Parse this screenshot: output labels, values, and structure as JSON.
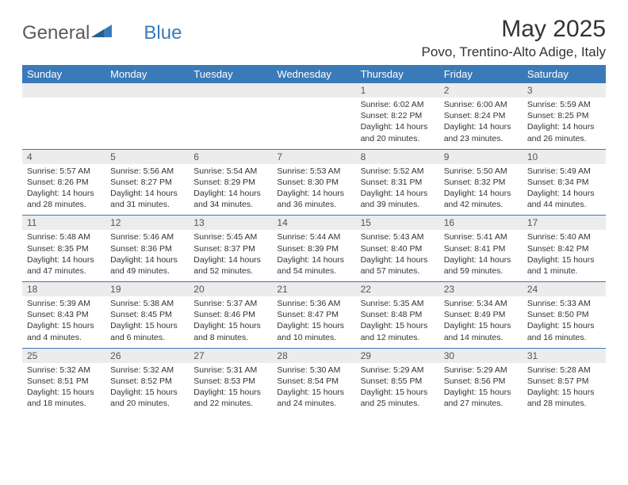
{
  "brand": {
    "part1": "General",
    "part2": "Blue"
  },
  "title": "May 2025",
  "location": "Povo, Trentino-Alto Adige, Italy",
  "colors": {
    "header_bg": "#3a7ab8",
    "header_fg": "#ffffff",
    "daynum_bg": "#ececec",
    "row_border": "#3a7ab8"
  },
  "weekdays": [
    "Sunday",
    "Monday",
    "Tuesday",
    "Wednesday",
    "Thursday",
    "Friday",
    "Saturday"
  ],
  "weeks": [
    [
      {
        "n": "",
        "lines": []
      },
      {
        "n": "",
        "lines": []
      },
      {
        "n": "",
        "lines": []
      },
      {
        "n": "",
        "lines": []
      },
      {
        "n": "1",
        "lines": [
          "Sunrise: 6:02 AM",
          "Sunset: 8:22 PM",
          "Daylight: 14 hours and 20 minutes."
        ]
      },
      {
        "n": "2",
        "lines": [
          "Sunrise: 6:00 AM",
          "Sunset: 8:24 PM",
          "Daylight: 14 hours and 23 minutes."
        ]
      },
      {
        "n": "3",
        "lines": [
          "Sunrise: 5:59 AM",
          "Sunset: 8:25 PM",
          "Daylight: 14 hours and 26 minutes."
        ]
      }
    ],
    [
      {
        "n": "4",
        "lines": [
          "Sunrise: 5:57 AM",
          "Sunset: 8:26 PM",
          "Daylight: 14 hours and 28 minutes."
        ]
      },
      {
        "n": "5",
        "lines": [
          "Sunrise: 5:56 AM",
          "Sunset: 8:27 PM",
          "Daylight: 14 hours and 31 minutes."
        ]
      },
      {
        "n": "6",
        "lines": [
          "Sunrise: 5:54 AM",
          "Sunset: 8:29 PM",
          "Daylight: 14 hours and 34 minutes."
        ]
      },
      {
        "n": "7",
        "lines": [
          "Sunrise: 5:53 AM",
          "Sunset: 8:30 PM",
          "Daylight: 14 hours and 36 minutes."
        ]
      },
      {
        "n": "8",
        "lines": [
          "Sunrise: 5:52 AM",
          "Sunset: 8:31 PM",
          "Daylight: 14 hours and 39 minutes."
        ]
      },
      {
        "n": "9",
        "lines": [
          "Sunrise: 5:50 AM",
          "Sunset: 8:32 PM",
          "Daylight: 14 hours and 42 minutes."
        ]
      },
      {
        "n": "10",
        "lines": [
          "Sunrise: 5:49 AM",
          "Sunset: 8:34 PM",
          "Daylight: 14 hours and 44 minutes."
        ]
      }
    ],
    [
      {
        "n": "11",
        "lines": [
          "Sunrise: 5:48 AM",
          "Sunset: 8:35 PM",
          "Daylight: 14 hours and 47 minutes."
        ]
      },
      {
        "n": "12",
        "lines": [
          "Sunrise: 5:46 AM",
          "Sunset: 8:36 PM",
          "Daylight: 14 hours and 49 minutes."
        ]
      },
      {
        "n": "13",
        "lines": [
          "Sunrise: 5:45 AM",
          "Sunset: 8:37 PM",
          "Daylight: 14 hours and 52 minutes."
        ]
      },
      {
        "n": "14",
        "lines": [
          "Sunrise: 5:44 AM",
          "Sunset: 8:39 PM",
          "Daylight: 14 hours and 54 minutes."
        ]
      },
      {
        "n": "15",
        "lines": [
          "Sunrise: 5:43 AM",
          "Sunset: 8:40 PM",
          "Daylight: 14 hours and 57 minutes."
        ]
      },
      {
        "n": "16",
        "lines": [
          "Sunrise: 5:41 AM",
          "Sunset: 8:41 PM",
          "Daylight: 14 hours and 59 minutes."
        ]
      },
      {
        "n": "17",
        "lines": [
          "Sunrise: 5:40 AM",
          "Sunset: 8:42 PM",
          "Daylight: 15 hours and 1 minute."
        ]
      }
    ],
    [
      {
        "n": "18",
        "lines": [
          "Sunrise: 5:39 AM",
          "Sunset: 8:43 PM",
          "Daylight: 15 hours and 4 minutes."
        ]
      },
      {
        "n": "19",
        "lines": [
          "Sunrise: 5:38 AM",
          "Sunset: 8:45 PM",
          "Daylight: 15 hours and 6 minutes."
        ]
      },
      {
        "n": "20",
        "lines": [
          "Sunrise: 5:37 AM",
          "Sunset: 8:46 PM",
          "Daylight: 15 hours and 8 minutes."
        ]
      },
      {
        "n": "21",
        "lines": [
          "Sunrise: 5:36 AM",
          "Sunset: 8:47 PM",
          "Daylight: 15 hours and 10 minutes."
        ]
      },
      {
        "n": "22",
        "lines": [
          "Sunrise: 5:35 AM",
          "Sunset: 8:48 PM",
          "Daylight: 15 hours and 12 minutes."
        ]
      },
      {
        "n": "23",
        "lines": [
          "Sunrise: 5:34 AM",
          "Sunset: 8:49 PM",
          "Daylight: 15 hours and 14 minutes."
        ]
      },
      {
        "n": "24",
        "lines": [
          "Sunrise: 5:33 AM",
          "Sunset: 8:50 PM",
          "Daylight: 15 hours and 16 minutes."
        ]
      }
    ],
    [
      {
        "n": "25",
        "lines": [
          "Sunrise: 5:32 AM",
          "Sunset: 8:51 PM",
          "Daylight: 15 hours and 18 minutes."
        ]
      },
      {
        "n": "26",
        "lines": [
          "Sunrise: 5:32 AM",
          "Sunset: 8:52 PM",
          "Daylight: 15 hours and 20 minutes."
        ]
      },
      {
        "n": "27",
        "lines": [
          "Sunrise: 5:31 AM",
          "Sunset: 8:53 PM",
          "Daylight: 15 hours and 22 minutes."
        ]
      },
      {
        "n": "28",
        "lines": [
          "Sunrise: 5:30 AM",
          "Sunset: 8:54 PM",
          "Daylight: 15 hours and 24 minutes."
        ]
      },
      {
        "n": "29",
        "lines": [
          "Sunrise: 5:29 AM",
          "Sunset: 8:55 PM",
          "Daylight: 15 hours and 25 minutes."
        ]
      },
      {
        "n": "30",
        "lines": [
          "Sunrise: 5:29 AM",
          "Sunset: 8:56 PM",
          "Daylight: 15 hours and 27 minutes."
        ]
      },
      {
        "n": "31",
        "lines": [
          "Sunrise: 5:28 AM",
          "Sunset: 8:57 PM",
          "Daylight: 15 hours and 28 minutes."
        ]
      }
    ]
  ]
}
